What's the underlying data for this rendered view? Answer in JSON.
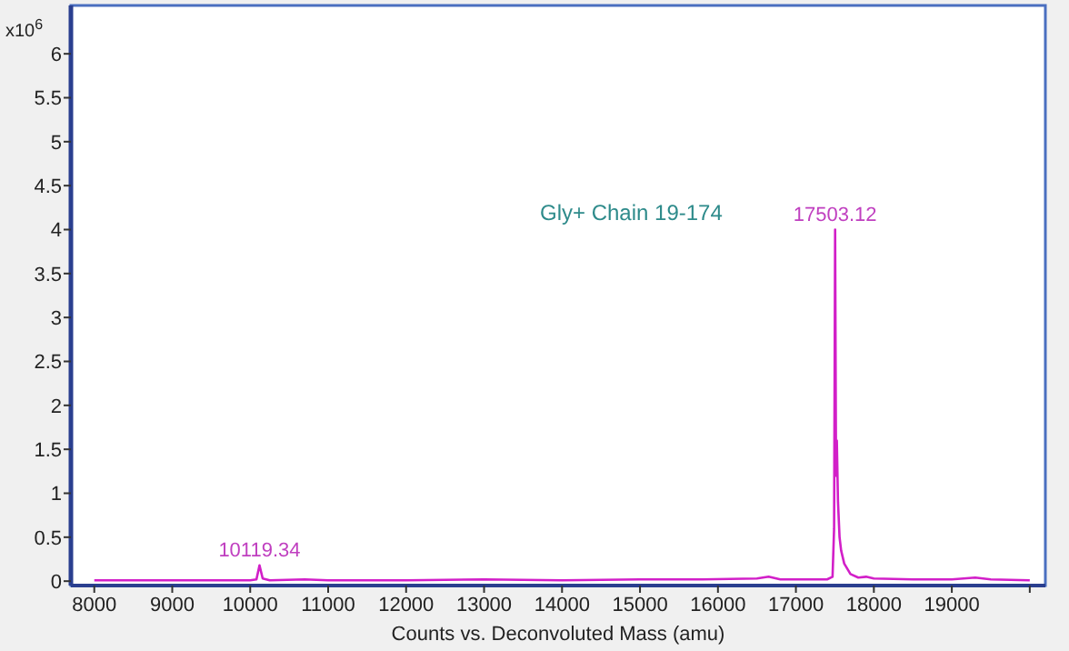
{
  "chart_data": {
    "type": "line",
    "xlabel": "Counts vs. Deconvoluted Mass (amu)",
    "ylabel": "x10$^{6}$",
    "xlim": [
      7700,
      20200
    ],
    "ylim": [
      -0.05,
      6.55
    ],
    "xticks": [
      8000,
      9000,
      10000,
      11000,
      12000,
      13000,
      14000,
      15000,
      16000,
      17000,
      18000,
      19000,
      {
        "value": 20000,
        "label": null
      }
    ],
    "yticks": [
      0,
      0.5,
      1,
      1.5,
      2,
      2.5,
      3,
      3.5,
      4,
      4.5,
      5,
      5.5,
      6
    ],
    "grid": false,
    "marker": "none",
    "line_style": "solid",
    "series": [
      {
        "color": "#d21fc8",
        "x": [
          8000,
          9000,
          10000,
          10080,
          10119.34,
          10160,
          10250,
          10700,
          11000,
          12000,
          13000,
          14000,
          15000,
          15800,
          16500,
          16650,
          16800,
          17400,
          17470,
          17490,
          17503.12,
          17515,
          17525,
          17540,
          17560,
          17580,
          17620,
          17700,
          17800,
          17900,
          18000,
          18500,
          19000,
          19300,
          19500,
          20000
        ],
        "values": [
          0.01,
          0.01,
          0.01,
          0.02,
          0.18,
          0.03,
          0.01,
          0.02,
          0.01,
          0.01,
          0.02,
          0.01,
          0.02,
          0.02,
          0.03,
          0.05,
          0.02,
          0.02,
          0.05,
          0.6,
          4.0,
          1.2,
          1.6,
          0.9,
          0.5,
          0.35,
          0.2,
          0.08,
          0.04,
          0.05,
          0.03,
          0.02,
          0.02,
          0.04,
          0.02,
          0.01
        ]
      }
    ],
    "annotations": [
      {
        "text": "10119.34",
        "x": 10119.34,
        "y": 0.18
      },
      {
        "text": "17503.12",
        "x": 17503.12,
        "y": 4.0
      },
      "Gly+ Chain 19-174"
    ]
  }
}
